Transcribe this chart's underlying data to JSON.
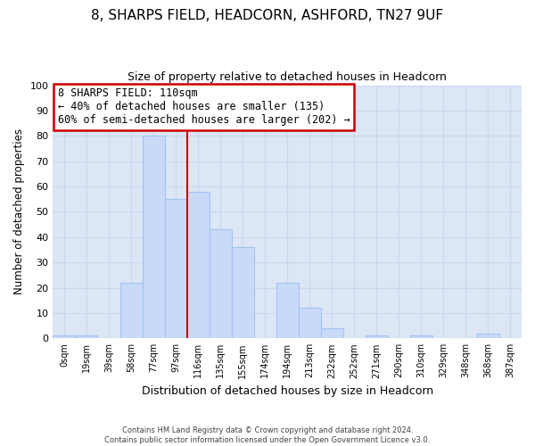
{
  "title": "8, SHARPS FIELD, HEADCORN, ASHFORD, TN27 9UF",
  "subtitle": "Size of property relative to detached houses in Headcorn",
  "xlabel": "Distribution of detached houses by size in Headcorn",
  "ylabel": "Number of detached properties",
  "bin_labels": [
    "0sqm",
    "19sqm",
    "39sqm",
    "58sqm",
    "77sqm",
    "97sqm",
    "116sqm",
    "135sqm",
    "155sqm",
    "174sqm",
    "194sqm",
    "213sqm",
    "232sqm",
    "252sqm",
    "271sqm",
    "290sqm",
    "310sqm",
    "329sqm",
    "348sqm",
    "368sqm",
    "387sqm"
  ],
  "bar_heights": [
    1,
    1,
    0,
    22,
    80,
    55,
    58,
    43,
    36,
    0,
    22,
    12,
    4,
    0,
    1,
    0,
    1,
    0,
    0,
    2,
    0
  ],
  "bar_color": "#c9daf8",
  "bar_edge_color": "#a4c2f4",
  "plot_bg_color": "#dce6f5",
  "vline_x": 5.5,
  "vline_color": "#cc0000",
  "annotation_title": "8 SHARPS FIELD: 110sqm",
  "annotation_line1": "← 40% of detached houses are smaller (135)",
  "annotation_line2": "60% of semi-detached houses are larger (202) →",
  "annotation_box_color": "#ffffff",
  "annotation_box_edge": "#cc0000",
  "ylim": [
    0,
    100
  ],
  "yticks": [
    0,
    10,
    20,
    30,
    40,
    50,
    60,
    70,
    80,
    90,
    100
  ],
  "footer_line1": "Contains HM Land Registry data © Crown copyright and database right 2024.",
  "footer_line2": "Contains public sector information licensed under the Open Government Licence v3.0.",
  "bg_color": "#ffffff",
  "grid_color": "#c8d8ee",
  "title_fontsize": 11,
  "subtitle_fontsize": 9
}
